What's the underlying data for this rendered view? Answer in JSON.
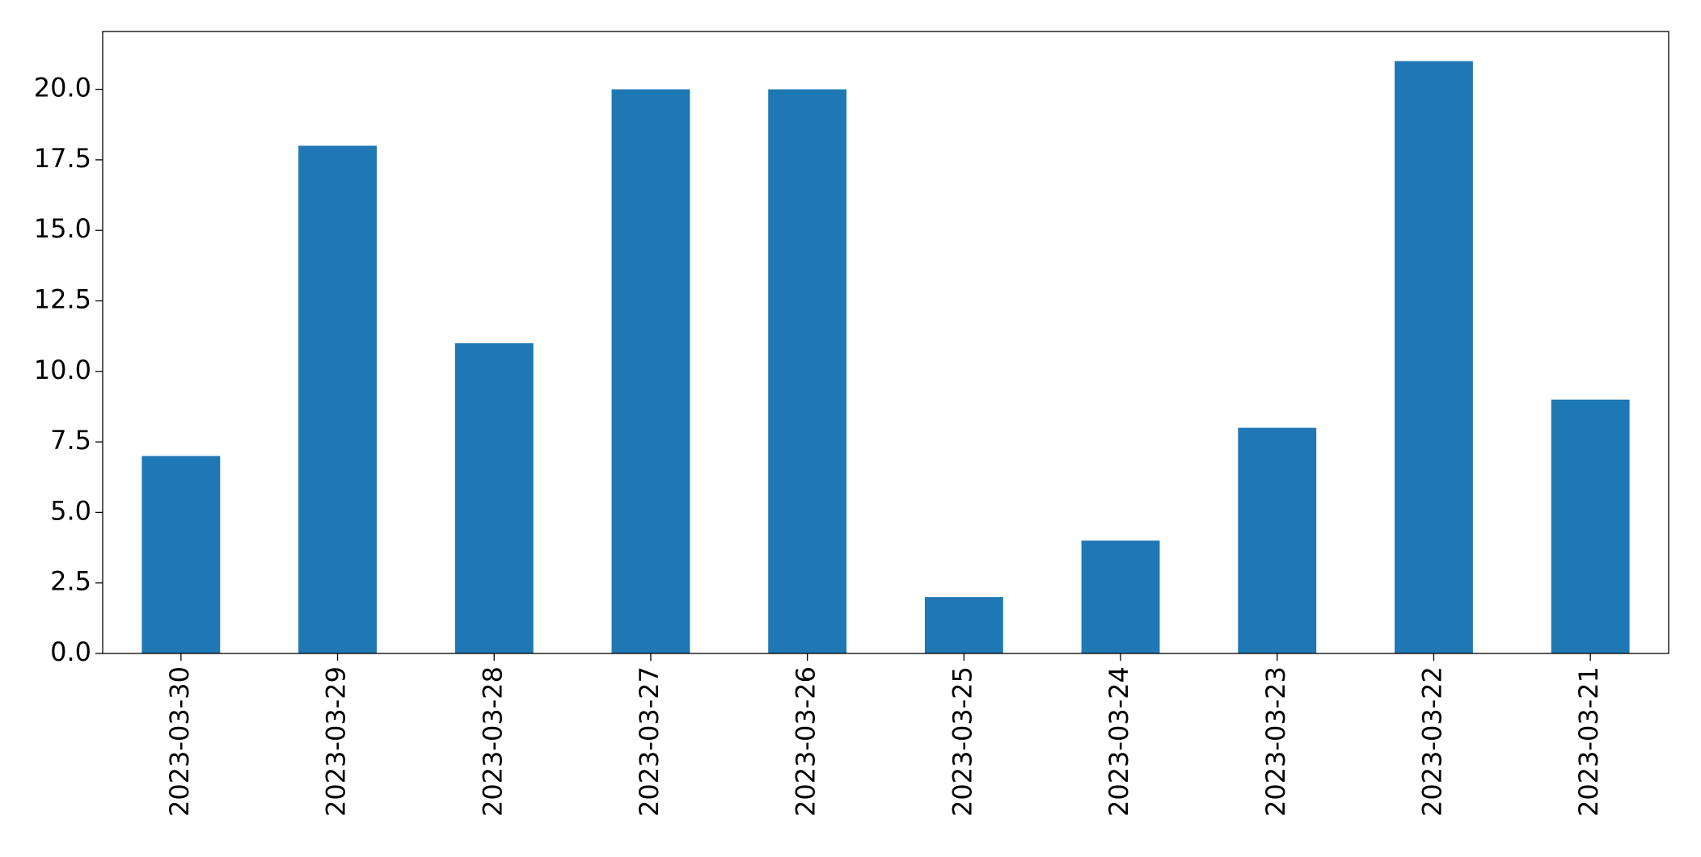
{
  "chart_data": {
    "type": "bar",
    "categories": [
      "2023-03-30",
      "2023-03-29",
      "2023-03-28",
      "2023-03-27",
      "2023-03-26",
      "2023-03-25",
      "2023-03-24",
      "2023-03-23",
      "2023-03-22",
      "2023-03-21"
    ],
    "values": [
      7,
      18,
      11,
      20,
      20,
      2,
      4,
      8,
      21,
      9
    ],
    "color": "#1f77b4",
    "ylim": [
      0,
      22.05
    ],
    "yticks": [
      {
        "value": 0,
        "label": "0.0"
      },
      2.5,
      {
        "value": 5,
        "label": "5.0"
      },
      7.5,
      {
        "value": 10,
        "label": "10.0"
      },
      12.5,
      {
        "value": 15,
        "label": "15.0"
      },
      17.5,
      {
        "value": 20,
        "label": "20.0"
      }
    ],
    "grid": false
  }
}
